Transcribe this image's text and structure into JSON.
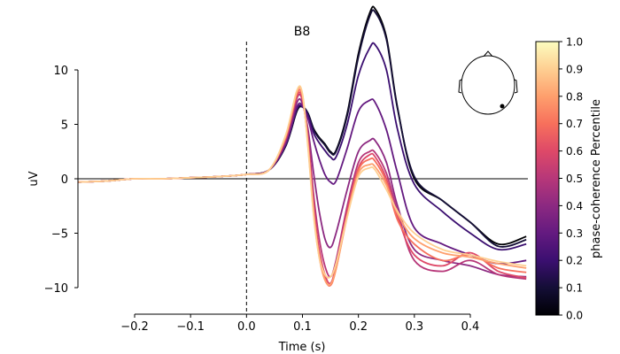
{
  "chart_data": {
    "type": "line",
    "title": "B8",
    "xlabel": "Time (s)",
    "ylabel": "uV",
    "xlim": [
      -0.3,
      0.5
    ],
    "ylim": [
      -12.5,
      12.5
    ],
    "x_ticks": [
      -0.2,
      -0.1,
      0.0,
      0.1,
      0.2,
      0.3,
      0.4
    ],
    "x_tick_labels": [
      "−0.2",
      "−0.1",
      "0.0",
      "0.1",
      "0.2",
      "0.3",
      "0.4"
    ],
    "y_ticks": [
      10,
      5,
      0,
      -5,
      -10
    ],
    "y_tick_labels": [
      "10",
      "5",
      "0",
      "−5",
      "−10"
    ],
    "event_marker_x": 0.0,
    "zero_line_y": 0,
    "colormap": "magma",
    "colorbar": {
      "label": "phase-coherence Percentile",
      "range": [
        0.0,
        1.0
      ],
      "ticks": [
        0.0,
        0.1,
        0.2,
        0.3,
        0.4,
        0.5,
        0.6,
        0.7,
        0.8,
        0.9,
        1.0
      ],
      "tick_labels": [
        "0.0",
        "0.1",
        "0.2",
        "0.3",
        "0.4",
        "0.5",
        "0.6",
        "0.7",
        "0.8",
        "0.9",
        "1.0"
      ]
    },
    "sensor_inset": {
      "marker": "dot",
      "position": "top-right"
    },
    "x": [
      -0.3,
      -0.25,
      -0.2,
      -0.15,
      -0.1,
      -0.05,
      0.0,
      0.04,
      0.07,
      0.09,
      0.1,
      0.11,
      0.12,
      0.13,
      0.14,
      0.15,
      0.16,
      0.18,
      0.2,
      0.22,
      0.23,
      0.25,
      0.27,
      0.3,
      0.35,
      0.4,
      0.45,
      0.5
    ],
    "series": [
      {
        "value": 0.0,
        "color": "#000004",
        "values": [
          -0.3,
          -0.2,
          0.0,
          0.0,
          0.1,
          0.2,
          0.4,
          0.8,
          3.0,
          6.2,
          6.6,
          6.0,
          4.6,
          3.8,
          3.2,
          2.5,
          2.6,
          6.0,
          11.5,
          15.2,
          15.6,
          13.0,
          6.5,
          0.0,
          -2.0,
          -4.0,
          -6.0,
          -5.3
        ]
      },
      {
        "value": 0.1,
        "color": "#140e36",
        "values": [
          -0.3,
          -0.2,
          0.0,
          0.0,
          0.1,
          0.2,
          0.4,
          0.8,
          3.0,
          6.3,
          6.6,
          6.0,
          4.5,
          3.7,
          3.1,
          2.4,
          2.5,
          5.8,
          11.2,
          14.9,
          15.3,
          12.8,
          6.4,
          0.2,
          -2.0,
          -4.0,
          -6.2,
          -5.6
        ]
      },
      {
        "value": 0.2,
        "color": "#3b0f70",
        "values": [
          -0.3,
          -0.2,
          0.0,
          0.0,
          0.1,
          0.2,
          0.4,
          0.8,
          3.1,
          6.4,
          6.6,
          5.8,
          4.2,
          3.3,
          2.6,
          2.0,
          2.0,
          5.0,
          9.5,
          12.0,
          12.3,
          10.0,
          4.5,
          -0.5,
          -3.0,
          -5.0,
          -6.5,
          -6.0
        ]
      },
      {
        "value": 0.35,
        "color": "#641a80",
        "values": [
          -0.3,
          -0.2,
          0.0,
          0.0,
          0.1,
          0.2,
          0.4,
          0.8,
          3.2,
          6.6,
          6.7,
          5.5,
          3.5,
          1.8,
          0.4,
          -0.3,
          -0.2,
          2.8,
          6.2,
          7.2,
          7.0,
          4.5,
          0.5,
          -4.5,
          -6.0,
          -7.0,
          -7.8,
          -7.5
        ]
      },
      {
        "value": 0.45,
        "color": "#8c2981",
        "values": [
          -0.3,
          -0.2,
          0.0,
          0.0,
          0.1,
          0.2,
          0.4,
          0.8,
          3.4,
          7.0,
          6.9,
          4.5,
          0.5,
          -3.0,
          -5.5,
          -6.3,
          -5.0,
          -1.0,
          2.5,
          3.5,
          3.5,
          1.5,
          -2.5,
          -6.5,
          -7.5,
          -8.0,
          -8.8,
          -9.0
        ]
      },
      {
        "value": 0.55,
        "color": "#b73779",
        "values": [
          -0.3,
          -0.2,
          0.0,
          0.0,
          0.1,
          0.2,
          0.4,
          0.8,
          3.6,
          7.4,
          7.2,
          4.0,
          -1.5,
          -5.5,
          -8.0,
          -9.0,
          -7.5,
          -2.5,
          1.5,
          2.5,
          2.4,
          0.5,
          -3.0,
          -7.5,
          -8.5,
          -7.5,
          -8.8,
          -9.2
        ]
      },
      {
        "value": 0.65,
        "color": "#de4968",
        "values": [
          -0.3,
          -0.2,
          0.0,
          0.0,
          0.1,
          0.2,
          0.4,
          0.8,
          3.7,
          7.6,
          7.3,
          3.5,
          -2.5,
          -6.5,
          -8.8,
          -9.6,
          -8.0,
          -3.0,
          1.0,
          2.2,
          2.0,
          0.0,
          -3.5,
          -7.0,
          -8.0,
          -6.8,
          -8.5,
          -9.1
        ]
      },
      {
        "value": 0.75,
        "color": "#f7705c",
        "values": [
          -0.3,
          -0.2,
          0.0,
          0.0,
          0.1,
          0.2,
          0.4,
          0.8,
          3.8,
          7.8,
          7.5,
          3.2,
          -3.0,
          -7.0,
          -9.2,
          -9.8,
          -8.3,
          -3.3,
          0.8,
          1.8,
          1.6,
          -0.3,
          -3.8,
          -6.0,
          -7.5,
          -7.0,
          -8.2,
          -8.6
        ]
      },
      {
        "value": 0.85,
        "color": "#fe9f6d",
        "values": [
          -0.3,
          -0.2,
          0.0,
          0.0,
          0.1,
          0.2,
          0.4,
          0.8,
          3.9,
          8.0,
          7.7,
          3.0,
          -3.2,
          -7.2,
          -9.3,
          -9.7,
          -8.3,
          -3.5,
          0.5,
          1.3,
          1.1,
          -0.6,
          -3.2,
          -5.5,
          -6.8,
          -7.2,
          -7.8,
          -8.2
        ]
      },
      {
        "value": 0.95,
        "color": "#fecf92",
        "values": [
          -0.3,
          -0.2,
          0.0,
          0.0,
          0.1,
          0.2,
          0.4,
          0.8,
          4.0,
          8.1,
          7.8,
          2.8,
          -3.4,
          -7.2,
          -8.8,
          -9.0,
          -7.8,
          -3.5,
          0.2,
          1.0,
          0.8,
          -1.0,
          -3.0,
          -5.0,
          -6.5,
          -7.0,
          -7.6,
          -8.0
        ]
      }
    ]
  }
}
